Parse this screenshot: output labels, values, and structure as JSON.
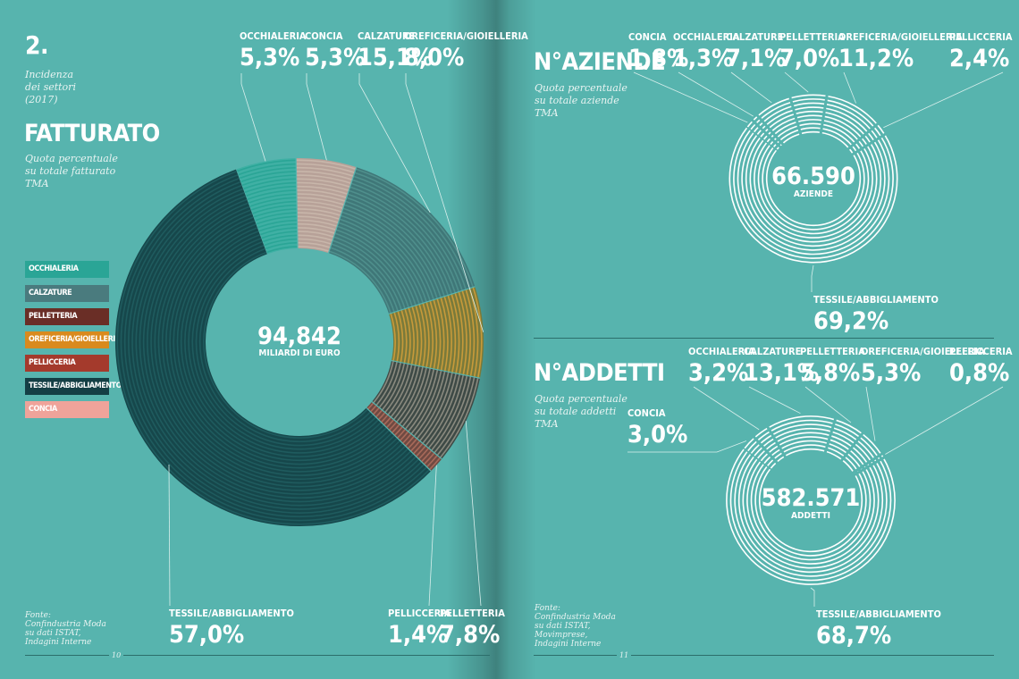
{
  "left_page": {
    "section_number": "2.",
    "intro": [
      "Incidenza",
      "dei settori",
      "(2017)"
    ],
    "title": "FATTURATO",
    "subtitle": [
      "Quota percentuale",
      "su totale fatturato",
      "TMA"
    ],
    "center_value": "94,842",
    "center_unit": "MILIARDI DI EURO",
    "source": [
      "Fonte:",
      "Confindustria Moda",
      "su dati ISTAT,",
      "Indagini Interne"
    ],
    "page_number": "10"
  },
  "right_page": {
    "aziende": {
      "title": "N°AZIENDE",
      "subtitle": [
        "Quota percentuale",
        "su totale aziende",
        "TMA"
      ],
      "center_value": "66.590",
      "center_unit": "AZIENDE"
    },
    "addetti": {
      "title": "N°ADDETTI",
      "subtitle": [
        "Quota percentuale",
        "su totale addetti",
        "TMA"
      ],
      "center_value": "582.571",
      "center_unit": "ADDETTI"
    },
    "source": [
      "Fonte:",
      "Confindustria Moda",
      "su dati ISTAT,",
      "Movimprese,",
      "Indagini Interne"
    ],
    "page_number": "11"
  },
  "legend": [
    {
      "label": "OCCHIALERIA",
      "color": "#2aa596"
    },
    {
      "label": "CALZATURE",
      "color": "#4a7b7e"
    },
    {
      "label": "PELLETTERIA",
      "color": "#6a2e26"
    },
    {
      "label": "OREFICERIA/GIOIELLERIA",
      "color": "#d98a1e"
    },
    {
      "label": "PELLICCERIA",
      "color": "#a43a2c"
    },
    {
      "label": "TESSILE/ABBIGLIAMENTO",
      "color": "#143f45"
    },
    {
      "label": "CONCIA",
      "color": "#efa39a"
    }
  ],
  "chart_data": [
    {
      "type": "pie",
      "title": "FATTURATO",
      "categories": [
        "OCCHIALERIA",
        "CONCIA",
        "CALZATURE",
        "OREFICERIA/GIOIELLERIA",
        "PELLETTERIA",
        "PELLICCERIA",
        "TESSILE/ABBIGLIAMENTO"
      ],
      "values": [
        5.3,
        5.3,
        15.1,
        8.0,
        7.8,
        1.4,
        57.0
      ],
      "value_labels": [
        "5,3%",
        "5,3%",
        "15,1%",
        "8,0%",
        "7,8%",
        "1,4%",
        "57,0%"
      ]
    },
    {
      "type": "pie",
      "title": "N°AZIENDE",
      "categories": [
        "CONCIA",
        "OCCHIALERIA",
        "CALZATURE",
        "PELLETTERIA",
        "OREFICERIA/GIOIELLERIA",
        "PELLICCERIA",
        "TESSILE/ABBIGLIAMENTO"
      ],
      "values": [
        1.8,
        1.3,
        7.1,
        7.0,
        11.2,
        2.4,
        69.2
      ],
      "value_labels": [
        "1,8%",
        "1,3%",
        "7,1%",
        "7,0%",
        "11,2%",
        "2,4%",
        "69,2%"
      ]
    },
    {
      "type": "pie",
      "title": "N°ADDETTI",
      "categories": [
        "CONCIA",
        "OCCHIALERIA",
        "CALZATURE",
        "PELLETTERIA",
        "OREFICERIA/GIOIELLERIA",
        "PELLICCERIA",
        "TESSILE/ABBIGLIAMENTO"
      ],
      "values": [
        3.0,
        3.2,
        13.1,
        5.8,
        5.3,
        0.8,
        68.7
      ],
      "value_labels": [
        "3,0%",
        "3,2%",
        "13,1%",
        "5,8%",
        "5,3%",
        "0,8%",
        "68,7%"
      ]
    }
  ]
}
